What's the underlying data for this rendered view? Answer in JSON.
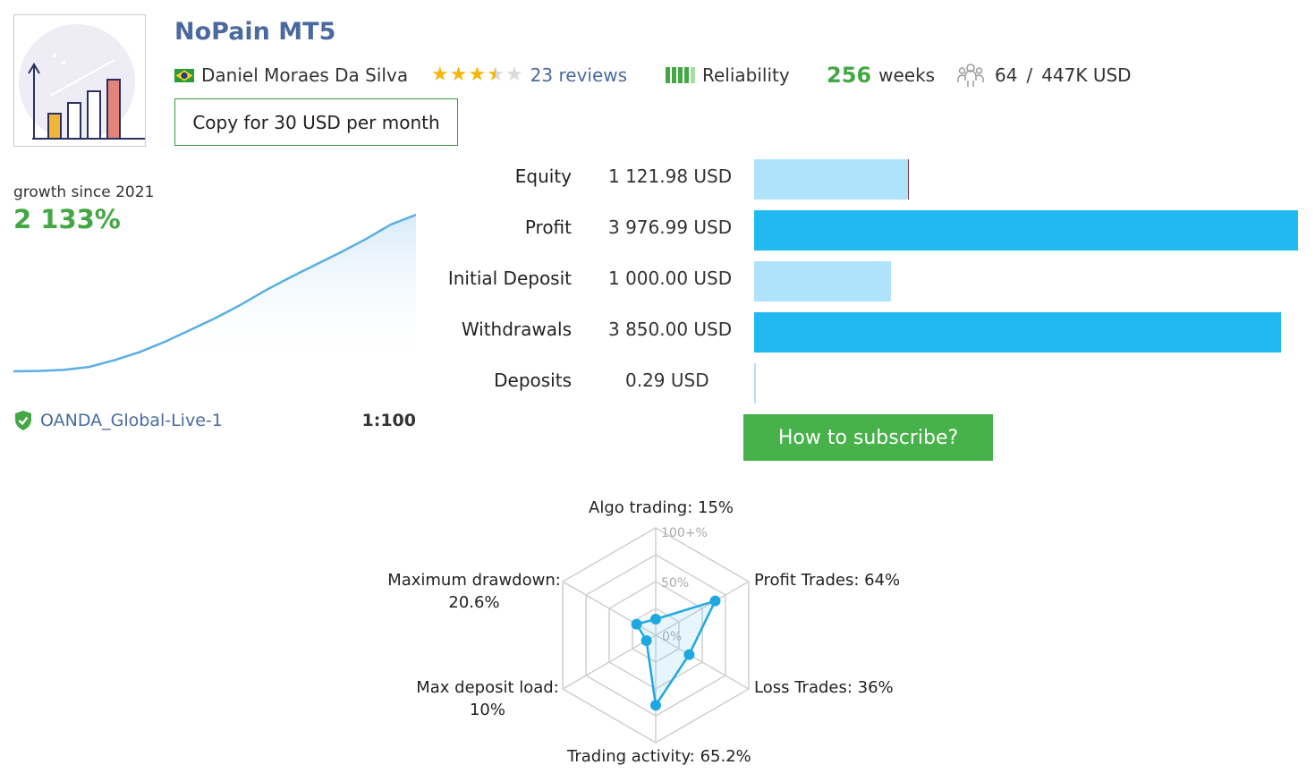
{
  "header": {
    "title": "NoPain MT5",
    "author": "Daniel Moraes Da Silva",
    "rating": 3.5,
    "reviews": "23 reviews",
    "reliability_label": "Reliability",
    "weeks_value": "256",
    "weeks_unit": "weeks",
    "subscribers": "64",
    "separator": "/",
    "funds": "447K USD",
    "copy_button": "Copy for 30 USD per month"
  },
  "growth": {
    "label": "growth since 2021",
    "value": "2 133%"
  },
  "account": {
    "server": "OANDA_Global-Live-1",
    "leverage": "1:100"
  },
  "stats": [
    {
      "label": "Equity",
      "value": "1 121.98 USD",
      "amount": 1121.98
    },
    {
      "label": "Profit",
      "value": "3 976.99 USD",
      "amount": 3976.99
    },
    {
      "label": "Initial Deposit",
      "value": "1 000.00 USD",
      "amount": 1000.0
    },
    {
      "label": "Withdrawals",
      "value": "3 850.00 USD",
      "amount": 3850.0
    },
    {
      "label": "Deposits",
      "value": "0.29 USD",
      "amount": 0.29
    }
  ],
  "subscribe_button": "How to subscribe?",
  "colors": {
    "accent_green": "#43a843",
    "link_blue": "#4a6a9f",
    "bar_strong": "#22b8f0",
    "bar_light": "#aee3fb",
    "button_green": "#47b14a"
  },
  "chart_data": [
    {
      "type": "line",
      "description_values": "cumulative growth curve",
      "x": [
        0,
        1,
        2,
        3,
        4,
        5,
        6,
        7,
        8,
        9,
        10,
        11,
        12,
        13,
        14,
        15,
        16
      ],
      "y": [
        0,
        5,
        20,
        60,
        150,
        260,
        400,
        560,
        720,
        900,
        1100,
        1280,
        1450,
        1620,
        1800,
        2000,
        2133
      ],
      "title": "",
      "xlabel": "",
      "ylabel": ""
    },
    {
      "type": "radar",
      "scale_ticks": [
        "0%",
        "50%",
        "100+%"
      ],
      "axes": [
        {
          "label": "Algo trading: 15%",
          "value": 15
        },
        {
          "label": "Profit Trades: 64%",
          "value": 64
        },
        {
          "label": "Loss Trades: 36%",
          "value": 36
        },
        {
          "label": "Trading activity: 65.2%",
          "value": 65.2
        },
        {
          "label": "Max deposit load:",
          "label2": "10%",
          "value": 10
        },
        {
          "label": "Maximum drawdown:",
          "label2": "20.6%",
          "value": 20.6
        }
      ]
    }
  ]
}
